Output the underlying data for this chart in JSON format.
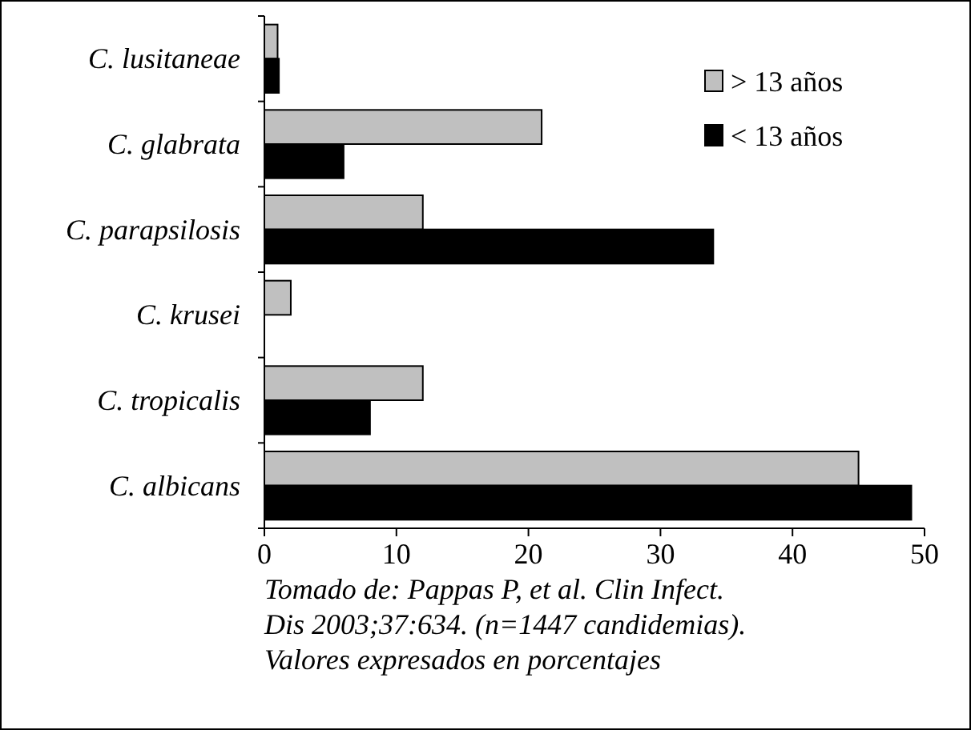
{
  "chart_data": {
    "type": "bar",
    "orientation": "horizontal",
    "categories": [
      "C. lusitaneae",
      "C. glabrata",
      "C. parapsilosis",
      "C. krusei",
      "C. tropicalis",
      "C. albicans"
    ],
    "series": [
      {
        "name": "> 13 años",
        "color": "#c0c0c0",
        "values": [
          1,
          21,
          12,
          2,
          12,
          45
        ]
      },
      {
        "name": "< 13 años",
        "color": "#000000",
        "values": [
          1.1,
          6,
          34,
          0,
          8,
          49
        ]
      }
    ],
    "xlim": [
      0,
      50
    ],
    "xticks": [
      0,
      10,
      20,
      30,
      40,
      50
    ],
    "legend": "top right",
    "grid": false,
    "annotations": [
      "Tomado de: Pappas P, et al. Clin Infect.\nDis 2003;37:634. (n=1447 candidemias).\nValores expresados en porcentajes"
    ]
  }
}
